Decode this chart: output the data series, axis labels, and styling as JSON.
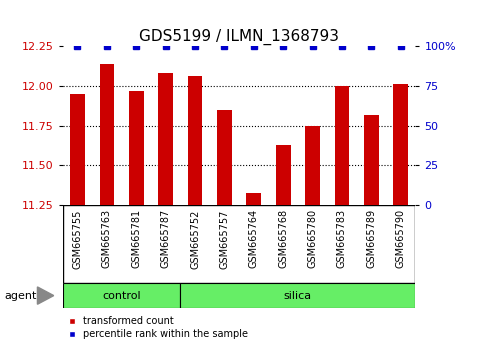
{
  "title": "GDS5199 / ILMN_1368793",
  "samples": [
    "GSM665755",
    "GSM665763",
    "GSM665781",
    "GSM665787",
    "GSM665752",
    "GSM665757",
    "GSM665764",
    "GSM665768",
    "GSM665780",
    "GSM665783",
    "GSM665789",
    "GSM665790"
  ],
  "values": [
    11.95,
    12.14,
    11.97,
    12.08,
    12.06,
    11.85,
    11.33,
    11.63,
    11.75,
    12.0,
    11.82,
    12.01
  ],
  "percentile_ranks": [
    100,
    100,
    100,
    100,
    100,
    100,
    100,
    100,
    100,
    100,
    100,
    100
  ],
  "bar_color": "#cc0000",
  "dot_color": "#0000cc",
  "ylim_left": [
    11.25,
    12.25
  ],
  "yticks_left": [
    11.25,
    11.5,
    11.75,
    12.0,
    12.25
  ],
  "ylim_right": [
    0,
    100
  ],
  "yticks_right": [
    0,
    25,
    50,
    75,
    100
  ],
  "ylabel_left_color": "#cc0000",
  "ylabel_right_color": "#0000cc",
  "control_count": 4,
  "silica_count": 8,
  "group_color": "#66ee66",
  "agent_label": "agent",
  "legend_items": [
    {
      "color": "#cc0000",
      "label": "transformed count"
    },
    {
      "color": "#0000cc",
      "label": "percentile rank within the sample"
    }
  ],
  "tick_label_fontsize": 7,
  "title_fontsize": 11,
  "bar_width": 0.5,
  "dot_size": 5,
  "gridline_style": "dotted",
  "background_color": "#ffffff",
  "tick_area_color": "#cccccc"
}
